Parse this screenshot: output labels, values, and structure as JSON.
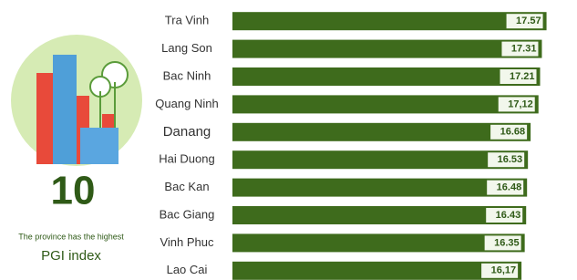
{
  "big_number": "10",
  "caption": "The province has the highest",
  "caption_title": "PGI index",
  "chart_data": {
    "type": "bar",
    "orientation": "horizontal",
    "categories": [
      "Tra Vinh",
      "Lang Son",
      "Bac Ninh",
      "Quang Ninh",
      "Danang",
      "Hai Duong",
      "Bac Kan",
      "Bac Giang",
      "Vinh Phuc",
      "Lao Cai"
    ],
    "values": [
      17.57,
      17.31,
      17.21,
      17.12,
      16.68,
      16.53,
      16.48,
      16.43,
      16.35,
      16.17
    ],
    "value_labels": [
      "17.57",
      "17.31",
      "17.21",
      "17,12",
      "16.68",
      "16.53",
      "16.48",
      "16.43",
      "16.35",
      "16,17"
    ],
    "color": "#3e6b1c",
    "xlim": [
      0,
      18
    ]
  }
}
